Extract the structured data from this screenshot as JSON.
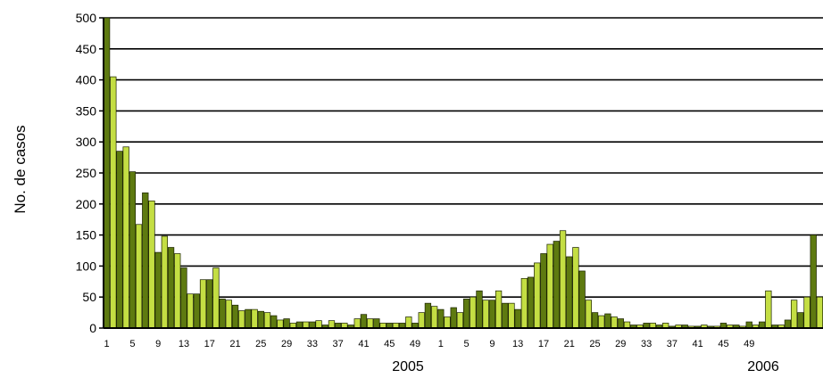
{
  "chart_data": {
    "type": "bar",
    "xlabel": "",
    "ylabel": "No. de casos",
    "ylim": [
      0,
      500
    ],
    "yticks": [
      "0",
      "50",
      "100",
      "150",
      "200",
      "250",
      "300",
      "350",
      "400",
      "450",
      "500"
    ],
    "grid": "horizontal major lines",
    "colors": {
      "dark": "#5e7a10",
      "light": "#c4de43",
      "edge": "#1a2200",
      "grid": "#000000"
    },
    "x_tick_labels": [
      "1",
      "5",
      "9",
      "13",
      "17",
      "21",
      "25",
      "29",
      "33",
      "37",
      "41",
      "45",
      "49",
      "1",
      "5",
      "9",
      "13",
      "17",
      "21",
      "25",
      "29",
      "33",
      "37",
      "41",
      "45",
      "49"
    ],
    "x_tick_week_index": [
      1,
      5,
      9,
      13,
      17,
      21,
      25,
      29,
      33,
      37,
      41,
      45,
      49,
      53,
      57,
      61,
      65,
      69,
      73,
      77,
      81,
      85,
      89,
      93,
      97,
      101
    ],
    "year_labels": [
      "2005",
      "2006"
    ],
    "values": [
      500,
      405,
      285,
      292,
      252,
      167,
      218,
      205,
      122,
      148,
      130,
      120,
      97,
      55,
      55,
      78,
      78,
      97,
      47,
      45,
      37,
      28,
      30,
      30,
      27,
      25,
      20,
      13,
      15,
      8,
      10,
      10,
      10,
      12,
      5,
      12,
      8,
      8,
      5,
      15,
      22,
      15,
      15,
      8,
      8,
      8,
      8,
      18,
      8,
      25,
      40,
      35,
      30,
      18,
      33,
      25,
      47,
      50,
      60,
      45,
      45,
      60,
      40,
      40,
      30,
      80,
      82,
      105,
      120,
      135,
      140,
      157,
      115,
      130,
      92,
      45,
      25,
      20,
      23,
      18,
      15,
      10,
      5,
      5,
      8,
      8,
      5,
      8,
      3,
      5,
      5,
      3,
      3,
      5,
      3,
      3,
      8,
      5,
      5,
      3,
      10,
      5,
      10,
      60,
      5,
      5,
      13,
      45,
      25,
      50,
      150,
      50
    ]
  }
}
